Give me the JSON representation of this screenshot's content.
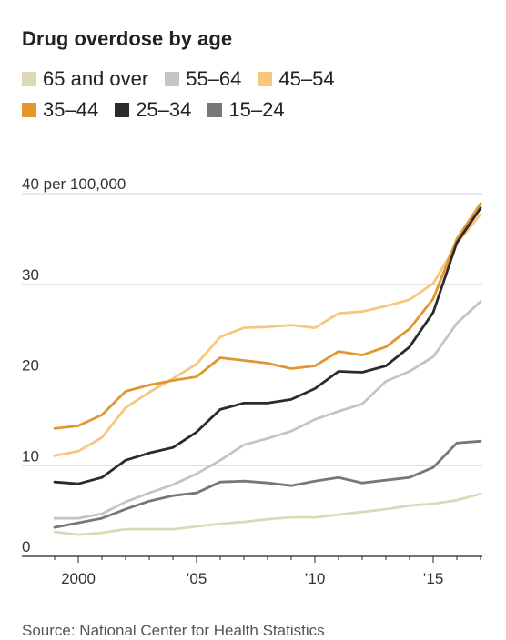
{
  "chart_data": {
    "type": "line",
    "title": "Drug overdose by age",
    "source": "Source: National Center for Health Statistics",
    "ylim": [
      0,
      40
    ],
    "xlim": [
      1999,
      2017
    ],
    "y_ticks": [
      {
        "value": 0,
        "label": "0"
      },
      {
        "value": 10,
        "label": "10"
      },
      {
        "value": 20,
        "label": "20"
      },
      {
        "value": 30,
        "label": "30"
      },
      {
        "value": 40,
        "label": "40 per 100,000"
      }
    ],
    "x_ticks": [
      {
        "value": 2000,
        "label": "2000"
      },
      {
        "value": 2005,
        "label": "’05"
      },
      {
        "value": 2010,
        "label": "’10"
      },
      {
        "value": 2015,
        "label": "’15"
      }
    ],
    "grid": true,
    "legend_position": "top",
    "x": [
      1999,
      2000,
      2001,
      2002,
      2003,
      2004,
      2005,
      2006,
      2007,
      2008,
      2009,
      2010,
      2011,
      2012,
      2013,
      2014,
      2015,
      2016,
      2017
    ],
    "series": [
      {
        "name": "65 and over",
        "color": "#ddd8b8",
        "values": [
          2.7,
          2.4,
          2.6,
          3.0,
          3.0,
          3.0,
          3.3,
          3.6,
          3.8,
          4.1,
          4.3,
          4.3,
          4.6,
          4.9,
          5.2,
          5.6,
          5.8,
          6.2,
          6.9
        ]
      },
      {
        "name": "55–64",
        "color": "#c4c4c4",
        "values": [
          4.2,
          4.2,
          4.7,
          6.0,
          7.0,
          7.9,
          9.1,
          10.6,
          12.3,
          13.0,
          13.8,
          15.1,
          16.0,
          16.8,
          19.3,
          20.4,
          22.0,
          25.7,
          28.1
        ]
      },
      {
        "name": "45–54",
        "color": "#f8c77e",
        "values": [
          11.1,
          11.6,
          13.1,
          16.4,
          18.1,
          19.6,
          21.2,
          24.2,
          25.2,
          25.3,
          25.5,
          25.2,
          26.8,
          27.0,
          27.6,
          28.3,
          30.1,
          34.5,
          37.7
        ]
      },
      {
        "name": "35–44",
        "color": "#e3962f",
        "values": [
          14.1,
          14.4,
          15.6,
          18.2,
          18.9,
          19.4,
          19.8,
          21.9,
          21.6,
          21.3,
          20.7,
          21.0,
          22.6,
          22.2,
          23.1,
          25.1,
          28.4,
          35.0,
          38.9
        ]
      },
      {
        "name": "25–34",
        "color": "#2b2b2b",
        "values": [
          8.2,
          8.0,
          8.7,
          10.6,
          11.4,
          12.0,
          13.7,
          16.2,
          16.9,
          16.9,
          17.3,
          18.5,
          20.4,
          20.3,
          21.0,
          23.1,
          26.9,
          34.6,
          38.4
        ]
      },
      {
        "name": "15–24",
        "color": "#777777",
        "values": [
          3.2,
          3.7,
          4.2,
          5.2,
          6.1,
          6.7,
          7.0,
          8.2,
          8.3,
          8.1,
          7.8,
          8.3,
          8.7,
          8.1,
          8.4,
          8.7,
          9.8,
          12.5,
          12.7
        ]
      }
    ]
  }
}
